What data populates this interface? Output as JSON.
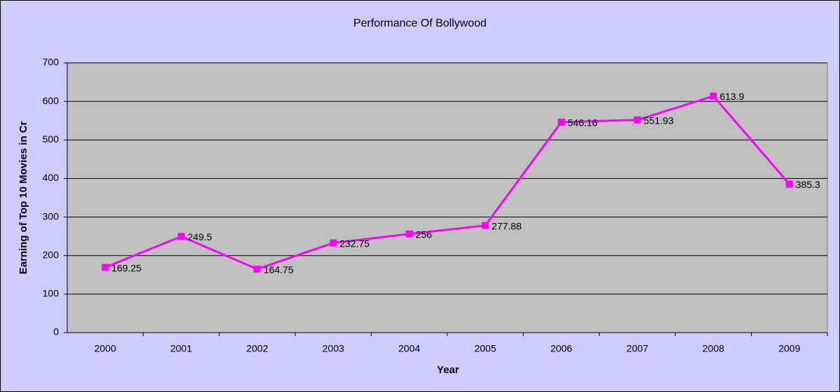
{
  "chart_data": {
    "type": "line",
    "title": "Performance Of Bollywood",
    "x_label": "Year",
    "y_label": "Earning of Top 10 Movies in Cr",
    "categories": [
      "2000",
      "2001",
      "2002",
      "2003",
      "2004",
      "2005",
      "2006",
      "2007",
      "2008",
      "2009"
    ],
    "series": [
      {
        "name": "Earning",
        "color": "#ff00ff",
        "values": [
          169.25,
          249.5,
          164.75,
          232.75,
          256,
          277.88,
          546.16,
          551.93,
          613.9,
          385.3
        ]
      }
    ],
    "ylim": [
      0,
      700
    ],
    "yticks": [
      0,
      100,
      200,
      300,
      400,
      500,
      600,
      700
    ],
    "grid": true
  }
}
